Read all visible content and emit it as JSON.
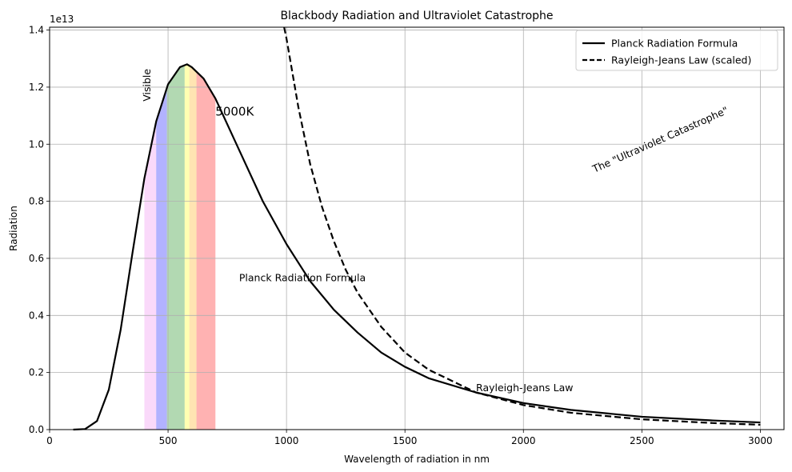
{
  "chart_data": {
    "type": "line",
    "title": "Blackbody Radiation and Ultraviolet Catastrophe",
    "xlabel": "Wavelength of radiation in nm",
    "ylabel": "Radiation",
    "y_offset_label": "1e13",
    "xlim": [
      0,
      3100
    ],
    "ylim": [
      0,
      1.41
    ],
    "y_scale_factor": 10000000000000.0,
    "x_ticks": [
      0,
      500,
      1000,
      1500,
      2000,
      2500,
      3000
    ],
    "x_tick_labels": [
      "0",
      "500",
      "1000",
      "1500",
      "2000",
      "2500",
      "3000"
    ],
    "y_ticks": [
      0,
      0.2,
      0.4,
      0.6,
      0.8,
      1.0,
      1.2,
      1.4
    ],
    "y_tick_labels": [
      "0.0",
      "0.2",
      "0.4",
      "0.6",
      "0.8",
      "1.0",
      "1.2",
      "1.4"
    ],
    "grid": true,
    "legend_position": "top-right",
    "temperature_K": 5000,
    "series": [
      {
        "name": "Planck Radiation Formula",
        "style": "solid",
        "color": "#000000",
        "x": [
          100,
          150,
          200,
          250,
          300,
          350,
          400,
          450,
          500,
          550,
          580,
          600,
          650,
          700,
          750,
          800,
          900,
          1000,
          1100,
          1200,
          1300,
          1400,
          1500,
          1600,
          1800,
          2000,
          2200,
          2500,
          2800,
          3000
        ],
        "y": [
          0.0,
          0.002,
          0.03,
          0.14,
          0.35,
          0.62,
          0.88,
          1.08,
          1.21,
          1.27,
          1.28,
          1.27,
          1.23,
          1.16,
          1.07,
          0.98,
          0.8,
          0.65,
          0.52,
          0.42,
          0.34,
          0.27,
          0.22,
          0.18,
          0.13,
          0.093,
          0.069,
          0.045,
          0.032,
          0.025
        ]
      },
      {
        "name": "Rayleigh-Jeans Law (scaled)",
        "style": "dashed",
        "color": "#000000",
        "x": [
          990,
          1000,
          1050,
          1100,
          1150,
          1200,
          1250,
          1300,
          1400,
          1500,
          1600,
          1800,
          2000,
          2200,
          2500,
          2800,
          3000
        ],
        "y": [
          1.41,
          1.37,
          1.13,
          0.93,
          0.78,
          0.66,
          0.56,
          0.48,
          0.36,
          0.27,
          0.21,
          0.13,
          0.086,
          0.059,
          0.036,
          0.023,
          0.017
        ]
      }
    ],
    "visible_bands": [
      {
        "from": 400,
        "to": 450,
        "color": "#ee82ee",
        "alpha": 0.3
      },
      {
        "from": 450,
        "to": 495,
        "color": "#0000ff",
        "alpha": 0.3
      },
      {
        "from": 495,
        "to": 570,
        "color": "#008000",
        "alpha": 0.3
      },
      {
        "from": 570,
        "to": 590,
        "color": "#ffff00",
        "alpha": 0.3
      },
      {
        "from": 590,
        "to": 620,
        "color": "#ffa500",
        "alpha": 0.3
      },
      {
        "from": 620,
        "to": 700,
        "color": "#ff0000",
        "alpha": 0.3
      }
    ],
    "annotations": [
      {
        "text": "Visible",
        "x": 425,
        "y": 1.15,
        "rotation": -90,
        "anchor": "start"
      },
      {
        "text": "5000K",
        "x": 700,
        "y": 1.1,
        "rotation": 0,
        "anchor": "start",
        "size": "large"
      },
      {
        "text": "Planck Radiation Formula",
        "x": 800,
        "y": 0.52,
        "rotation": 0,
        "anchor": "start"
      },
      {
        "text": "Rayleigh-Jeans Law",
        "x": 1800,
        "y": 0.135,
        "rotation": 0,
        "anchor": "start"
      },
      {
        "text": "The \"Ultraviolet Catastrophe\"",
        "x": 2300,
        "y": 0.9,
        "rotation": -24,
        "anchor": "start"
      }
    ]
  }
}
